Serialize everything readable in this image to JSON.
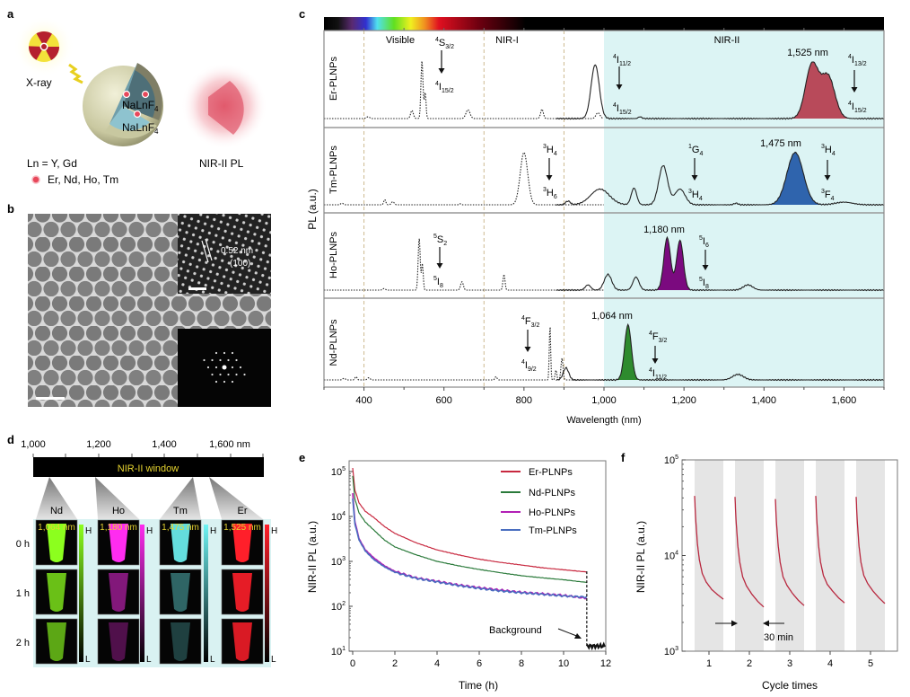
{
  "panel_labels": {
    "a": "a",
    "b": "b",
    "c": "c",
    "d": "d",
    "e": "e",
    "f": "f"
  },
  "panel_a": {
    "xray_label": "X-ray",
    "core_label": "NaLnF",
    "core_sub": "4",
    "shell_label": "NaLnF",
    "shell_sub": "4",
    "ln_note": "Ln = Y, Gd",
    "dopant_legend": "Er, Nd, Ho, Tm",
    "emission_label": "NIR-II PL",
    "colors": {
      "xray_red": "#b5202e",
      "xray_yellow": "#f3e23a",
      "shell": "#d9d8b4",
      "core": "#8ec3cf",
      "dopant": "#e8475a",
      "glow": "#e04a5c"
    }
  },
  "panel_b": {
    "lattice_spacing": "0.52 nm",
    "plane": "(100)"
  },
  "panel_d": {
    "ticks": [
      "1,000",
      "1,200",
      "1,400",
      "1,600 nm"
    ],
    "window_label": "NIR-II window",
    "rows": [
      "0 h",
      "1 h",
      "2 h"
    ],
    "high": "H",
    "low": "L",
    "columns": [
      {
        "element": "Nd",
        "wavelength": "1,064 nm",
        "color": "#8cff1e",
        "relative_brightness": [
          1.0,
          0.75,
          0.65
        ]
      },
      {
        "element": "Ho",
        "wavelength": "1,180 nm",
        "color": "#ff2cf0",
        "relative_brightness": [
          1.0,
          0.5,
          0.3
        ]
      },
      {
        "element": "Tm",
        "wavelength": "1,475 nm",
        "color": "#6ff5f5",
        "relative_brightness": [
          0.9,
          0.4,
          0.25
        ]
      },
      {
        "element": "Er",
        "wavelength": "1,525 nm",
        "color": "#ff1f2a",
        "relative_brightness": [
          1.0,
          0.9,
          0.85
        ]
      }
    ]
  },
  "chart_data": [
    {
      "id": "c",
      "type": "line",
      "title": "",
      "xlabel": "Wavelength (nm)",
      "ylabel": "PL (a.u.)",
      "xlim": [
        300,
        1700
      ],
      "xticks": [
        400,
        600,
        800,
        1000,
        1200,
        1400,
        1600
      ],
      "xtick_labels": [
        "400",
        "600",
        "800",
        "1,000",
        "1,200",
        "1,400",
        "1,600"
      ],
      "regions": [
        {
          "label": "Visible",
          "range": [
            400,
            700
          ]
        },
        {
          "label": "NIR-I",
          "range": [
            700,
            900
          ]
        },
        {
          "label": "NIR-II",
          "range": [
            900,
            1700
          ]
        }
      ],
      "shaded_from": 1000,
      "shade_color": "#dcf4f4",
      "series": [
        {
          "name": "Er-PLNPs",
          "fill_color": "#b84a5a",
          "peak_label": "1,525 nm",
          "dotted_range": [
            300,
            1000
          ],
          "solid_range": [
            880,
            1700
          ],
          "fill_range": [
            1440,
            1640
          ],
          "dotted_peaks": [
            [
              410,
              0.03,
              10
            ],
            [
              520,
              0.14,
              8
            ],
            [
              545,
              1.0,
              6
            ],
            [
              553,
              0.45,
              5
            ],
            [
              660,
              0.15,
              12
            ],
            [
              845,
              0.16,
              8
            ],
            [
              985,
              0.1,
              12
            ]
          ],
          "solid_peaks": [
            [
              978,
              0.92,
              24
            ],
            [
              1090,
              0.03,
              10
            ],
            [
              1520,
              0.92,
              38
            ],
            [
              1560,
              0.72,
              40
            ]
          ],
          "transitions": [
            {
              "upper": [
                "4",
                "S",
                "3/2"
              ],
              "lower": [
                "4",
                "I",
                "15/2"
              ]
            },
            {
              "upper": [
                "4",
                "I",
                "11/2"
              ],
              "lower": [
                "4",
                "I",
                "15/2"
              ]
            },
            {
              "upper": [
                "4",
                "I",
                "13/2"
              ],
              "lower": [
                "4",
                "I",
                "15/2"
              ]
            }
          ]
        },
        {
          "name": "Tm-PLNPs",
          "fill_color": "#2f64ad",
          "peak_label": "1,475 nm",
          "dotted_range": [
            300,
            1000
          ],
          "solid_range": [
            880,
            1700
          ],
          "fill_range": [
            1390,
            1560
          ],
          "dotted_peaks": [
            [
              345,
              0.03,
              8
            ],
            [
              452,
              0.1,
              6
            ],
            [
              472,
              0.06,
              8
            ],
            [
              640,
              0.02,
              6
            ],
            [
              800,
              1.0,
              22
            ]
          ],
          "solid_peaks": [
            [
              910,
              0.07,
              14
            ],
            [
              990,
              0.3,
              55
            ],
            [
              1075,
              0.32,
              16
            ],
            [
              1148,
              0.75,
              26
            ],
            [
              1190,
              0.3,
              30
            ],
            [
              1330,
              0.03,
              12
            ],
            [
              1478,
              1.0,
              48
            ],
            [
              1600,
              0.05,
              50
            ]
          ],
          "transitions": [
            {
              "upper": [
                "3",
                "H",
                "4"
              ],
              "lower": [
                "3",
                "H",
                "6"
              ]
            },
            {
              "upper": [
                "1",
                "G",
                "4"
              ],
              "lower": [
                "3",
                "H",
                "4"
              ]
            },
            {
              "upper": [
                "3",
                "H",
                "4"
              ],
              "lower": [
                "3",
                "F",
                "4"
              ]
            }
          ]
        },
        {
          "name": "Ho-PLNPs",
          "fill_color": "#7b0a7f",
          "peak_label": "1,180 nm",
          "dotted_range": [
            300,
            1000
          ],
          "solid_range": [
            880,
            1700
          ],
          "fill_range": [
            1120,
            1245
          ],
          "dotted_peaks": [
            [
              450,
              0.03,
              8
            ],
            [
              538,
              1.0,
              6
            ],
            [
              546,
              0.5,
              5
            ],
            [
              645,
              0.16,
              8
            ],
            [
              750,
              0.3,
              6
            ]
          ],
          "solid_peaks": [
            [
              960,
              0.1,
              16
            ],
            [
              1010,
              0.3,
              22
            ],
            [
              1080,
              0.25,
              18
            ],
            [
              1158,
              1.0,
              20
            ],
            [
              1190,
              0.95,
              20
            ],
            [
              1360,
              0.1,
              28
            ]
          ],
          "transitions": [
            {
              "upper": [
                "5",
                "S",
                "2"
              ],
              "lower": [
                "5",
                "I",
                "8"
              ]
            },
            {
              "upper": [
                "5",
                "I",
                "6"
              ],
              "lower": [
                "5",
                "I",
                "8"
              ]
            }
          ]
        },
        {
          "name": "Nd-PLNPs",
          "fill_color": "#2e8b2e",
          "peak_label": "1,064 nm",
          "dotted_range": [
            300,
            1000
          ],
          "solid_range": [
            880,
            1700
          ],
          "fill_range": [
            1015,
            1115
          ],
          "dotted_peaks": [
            [
              350,
              0.03,
              8
            ],
            [
              380,
              0.06,
              6
            ],
            [
              412,
              0.04,
              8
            ],
            [
              730,
              0.06,
              6
            ],
            [
              865,
              1.0,
              4
            ],
            [
              880,
              0.18,
              5
            ],
            [
              895,
              0.4,
              6
            ]
          ],
          "solid_peaks": [
            [
              905,
              0.22,
              16
            ],
            [
              1060,
              1.0,
              20
            ],
            [
              1335,
              0.1,
              32
            ]
          ],
          "transitions": [
            {
              "upper": [
                "4",
                "F",
                "3/2"
              ],
              "lower": [
                "4",
                "I",
                "9/2"
              ]
            },
            {
              "upper": [
                "4",
                "F",
                "3/2"
              ],
              "lower": [
                "4",
                "I",
                "11/2"
              ]
            }
          ]
        }
      ]
    },
    {
      "id": "e",
      "type": "line",
      "title": "",
      "xlabel": "Time (h)",
      "ylabel": "NIR-II PL (a.u.)",
      "xlim": [
        0,
        12
      ],
      "ylim": [
        10,
        100000
      ],
      "yscale": "log",
      "xticks": [
        0,
        2,
        4,
        6,
        8,
        10,
        12
      ],
      "yticks": [
        {
          "base": "10",
          "exp": "1"
        },
        {
          "base": "10",
          "exp": "2"
        },
        {
          "base": "10",
          "exp": "3"
        },
        {
          "base": "10",
          "exp": "4"
        },
        {
          "base": "10",
          "exp": "5"
        }
      ],
      "legend_position": "top-right",
      "series": [
        {
          "name": "Er-PLNPs",
          "color": "#c8283f",
          "x": [
            0,
            0.1,
            0.3,
            0.6,
            1,
            1.5,
            2,
            3,
            4,
            5,
            6,
            7,
            8,
            9,
            10,
            11.1
          ],
          "y": [
            120000,
            40000,
            20000,
            13000,
            9500,
            6000,
            4200,
            2600,
            1800,
            1400,
            1120,
            950,
            830,
            720,
            650,
            580
          ]
        },
        {
          "name": "Nd-PLNPs",
          "color": "#2a7a3a",
          "x": [
            0,
            0.1,
            0.3,
            0.6,
            1,
            1.5,
            2,
            3,
            4,
            5,
            6,
            7,
            8,
            9,
            10,
            11.1
          ],
          "y": [
            80000,
            25000,
            12000,
            7500,
            5000,
            3000,
            2100,
            1400,
            1000,
            800,
            660,
            560,
            480,
            430,
            390,
            340
          ]
        },
        {
          "name": "Ho-PLNPs",
          "color": "#b21fb5",
          "x": [
            0,
            0.1,
            0.3,
            0.6,
            1,
            1.5,
            2,
            3,
            4,
            5,
            6,
            7,
            8,
            9,
            10,
            11.1
          ],
          "y": [
            33000,
            8000,
            3200,
            1800,
            1200,
            800,
            600,
            430,
            360,
            300,
            260,
            230,
            205,
            190,
            175,
            150
          ]
        },
        {
          "name": "Tm-PLNPs",
          "color": "#4a6ec0",
          "x": [
            0,
            0.1,
            0.3,
            0.6,
            1,
            1.5,
            2,
            3,
            4,
            5,
            6,
            7,
            8,
            9,
            10,
            11.1
          ],
          "y": [
            25000,
            7000,
            3000,
            1700,
            1100,
            760,
            570,
            420,
            350,
            290,
            250,
            220,
            200,
            185,
            170,
            160
          ]
        }
      ],
      "background": {
        "label": "Background",
        "x": [
          11.1,
          12
        ],
        "y": 13,
        "cutoff_time": 11.1
      }
    },
    {
      "id": "f",
      "type": "line",
      "title": "",
      "xlabel": "Cycle times",
      "ylabel": "NIR-II PL (a.u.)",
      "ylim": [
        1000,
        100000
      ],
      "yscale": "log",
      "xticks": [
        1,
        2,
        3,
        4,
        5
      ],
      "yticks": [
        {
          "base": "10",
          "exp": "3"
        },
        {
          "base": "10",
          "exp": "4"
        },
        {
          "base": "10",
          "exp": "5"
        }
      ],
      "interval_label": "30 min",
      "band_color": "#e5e5e5",
      "line_color": "#b8283f",
      "decay_minutes": [
        0,
        1,
        3,
        5,
        8,
        12,
        18,
        24,
        30
      ],
      "cycles": [
        {
          "cycle": 1,
          "y": [
            42000,
            25000,
            13000,
            9000,
            6500,
            5300,
            4400,
            3900,
            3500
          ]
        },
        {
          "cycle": 2,
          "y": [
            41000,
            24000,
            12500,
            8500,
            6000,
            4800,
            3900,
            3300,
            2900
          ]
        },
        {
          "cycle": 3,
          "y": [
            39000,
            23000,
            12500,
            8500,
            6000,
            4900,
            4000,
            3400,
            3000
          ]
        },
        {
          "cycle": 4,
          "y": [
            42000,
            24000,
            12500,
            8500,
            6200,
            5000,
            4200,
            3600,
            3200
          ]
        },
        {
          "cycle": 5,
          "y": [
            41000,
            24000,
            12500,
            8500,
            6200,
            5100,
            4200,
            3600,
            3150
          ]
        }
      ]
    }
  ]
}
